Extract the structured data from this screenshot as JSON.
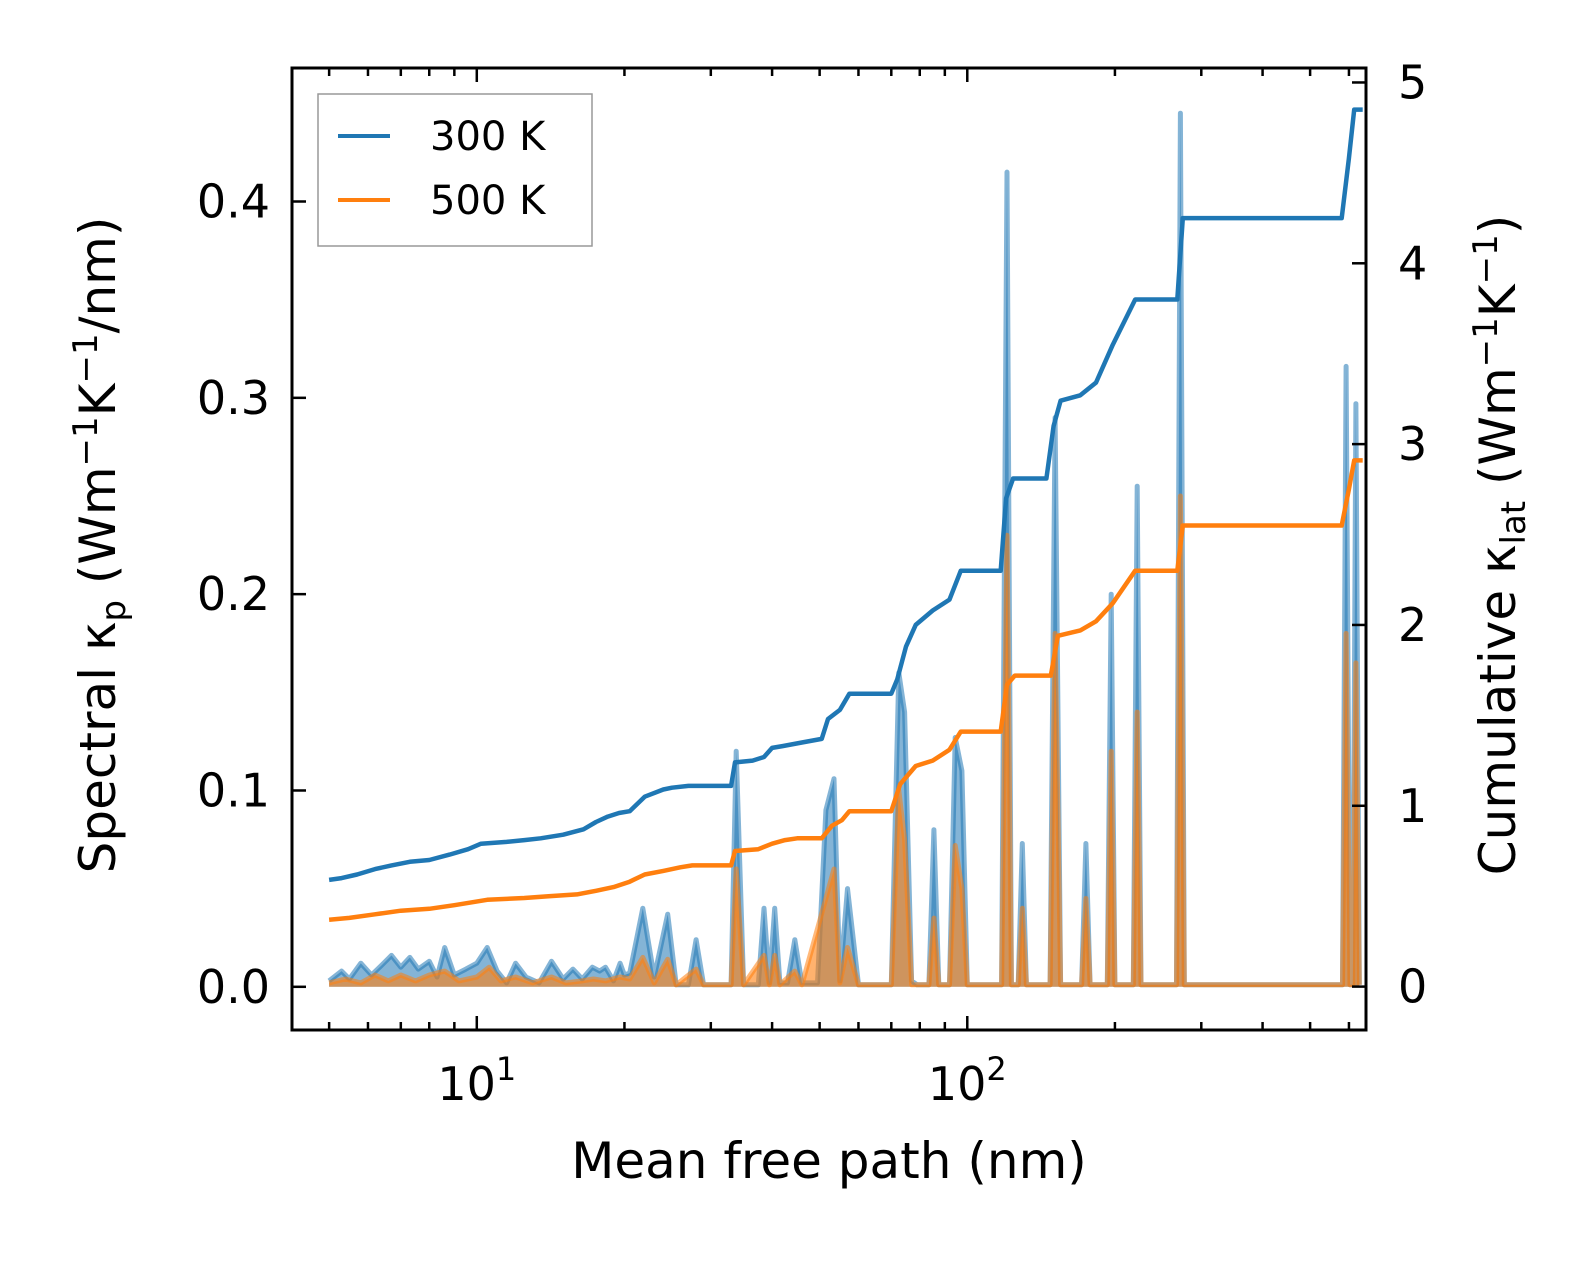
{
  "chart_data": {
    "type": "line",
    "x_scale": "log",
    "xlim": [
      4.2,
      650
    ],
    "ylim_left": [
      -0.022,
      0.468
    ],
    "ylim_right": [
      -0.24,
      5.08
    ],
    "xlabel": "Mean free path (nm)",
    "ylabel_left": {
      "prefix": "Spectral ",
      "kappa": "κ",
      "sub": "p",
      "units_open": " (Wm",
      "exp1": "−1",
      "mid": "K",
      "exp2": "−1",
      "units_close": "/nm)"
    },
    "ylabel_right": {
      "prefix": "Cumulative ",
      "kappa": "κ",
      "sub": "lat",
      "units_open": " (Wm",
      "exp1": "−1",
      "mid": "K",
      "exp2": "−1",
      "units_close": ")"
    },
    "x_ticks": [
      {
        "value": 10,
        "base": "10",
        "exp": "1"
      },
      {
        "value": 100,
        "base": "10",
        "exp": "2"
      }
    ],
    "y_ticks_left": [
      {
        "value": 0.0,
        "label": "0.0"
      },
      {
        "value": 0.1,
        "label": "0.1"
      },
      {
        "value": 0.2,
        "label": "0.2"
      },
      {
        "value": 0.3,
        "label": "0.3"
      },
      {
        "value": 0.4,
        "label": "0.4"
      }
    ],
    "y_ticks_right": [
      {
        "value": 0,
        "label": "0"
      },
      {
        "value": 1,
        "label": "1"
      },
      {
        "value": 2,
        "label": "2"
      },
      {
        "value": 3,
        "label": "3"
      },
      {
        "value": 4,
        "label": "4"
      },
      {
        "value": 5,
        "label": "5"
      }
    ],
    "legend": {
      "position": "top-left"
    },
    "series": [
      {
        "name": "300 K",
        "color": "#1f77b4",
        "cumulative": [
          [
            5.0,
            0.59
          ],
          [
            5.3,
            0.6
          ],
          [
            5.7,
            0.62
          ],
          [
            6.2,
            0.65
          ],
          [
            6.7,
            0.67
          ],
          [
            7.3,
            0.69
          ],
          [
            8.0,
            0.7
          ],
          [
            8.8,
            0.73
          ],
          [
            9.6,
            0.76
          ],
          [
            10.2,
            0.79
          ],
          [
            11.5,
            0.8
          ],
          [
            12.5,
            0.81
          ],
          [
            13.5,
            0.82
          ],
          [
            15.0,
            0.84
          ],
          [
            16.5,
            0.87
          ],
          [
            17.5,
            0.91
          ],
          [
            18.5,
            0.94
          ],
          [
            19.5,
            0.96
          ],
          [
            20.5,
            0.97
          ],
          [
            22.0,
            1.05
          ],
          [
            24.0,
            1.09
          ],
          [
            25.0,
            1.1
          ],
          [
            27.0,
            1.11
          ],
          [
            33.0,
            1.11
          ],
          [
            33.6,
            1.24
          ],
          [
            36.5,
            1.25
          ],
          [
            38.5,
            1.27
          ],
          [
            40.0,
            1.32
          ],
          [
            42.0,
            1.33
          ],
          [
            46.0,
            1.35
          ],
          [
            50.5,
            1.37
          ],
          [
            52.0,
            1.48
          ],
          [
            55.0,
            1.53
          ],
          [
            57.5,
            1.62
          ],
          [
            70.0,
            1.62
          ],
          [
            72.0,
            1.7
          ],
          [
            75.0,
            1.88
          ],
          [
            78.5,
            2.0
          ],
          [
            85.0,
            2.08
          ],
          [
            92.0,
            2.14
          ],
          [
            97.0,
            2.3
          ],
          [
            117.0,
            2.3
          ],
          [
            120.0,
            2.7
          ],
          [
            124.0,
            2.81
          ],
          [
            145.0,
            2.81
          ],
          [
            150.0,
            3.1
          ],
          [
            155.0,
            3.24
          ],
          [
            170.0,
            3.27
          ],
          [
            183.0,
            3.34
          ],
          [
            198.0,
            3.55
          ],
          [
            220.0,
            3.8
          ],
          [
            268.0,
            3.8
          ],
          [
            275.0,
            4.25
          ],
          [
            580.0,
            4.25
          ],
          [
            600.0,
            4.58
          ],
          [
            615.0,
            4.85
          ],
          [
            640.0,
            4.85
          ]
        ],
        "spectral": [
          [
            5.0,
            0.003
          ],
          [
            5.3,
            0.008
          ],
          [
            5.5,
            0.004
          ],
          [
            5.8,
            0.012
          ],
          [
            6.1,
            0.006
          ],
          [
            6.4,
            0.011
          ],
          [
            6.7,
            0.016
          ],
          [
            7.0,
            0.01
          ],
          [
            7.3,
            0.015
          ],
          [
            7.6,
            0.009
          ],
          [
            8.0,
            0.013
          ],
          [
            8.3,
            0.005
          ],
          [
            8.6,
            0.02
          ],
          [
            9.0,
            0.006
          ],
          [
            9.5,
            0.009
          ],
          [
            10.0,
            0.012
          ],
          [
            10.5,
            0.02
          ],
          [
            11.0,
            0.008
          ],
          [
            11.5,
            0.002
          ],
          [
            12.0,
            0.012
          ],
          [
            12.6,
            0.005
          ],
          [
            13.4,
            0.002
          ],
          [
            14.2,
            0.013
          ],
          [
            15.0,
            0.004
          ],
          [
            15.7,
            0.009
          ],
          [
            16.4,
            0.004
          ],
          [
            17.2,
            0.01
          ],
          [
            17.8,
            0.008
          ],
          [
            18.3,
            0.01
          ],
          [
            19.0,
            0.003
          ],
          [
            19.6,
            0.012
          ],
          [
            20.0,
            0.006
          ],
          [
            20.5,
            0.007
          ],
          [
            21.8,
            0.04
          ],
          [
            23.0,
            0.005
          ],
          [
            24.5,
            0.037
          ],
          [
            25.5,
            0.001
          ],
          [
            27.0,
            0.001
          ],
          [
            28.0,
            0.024
          ],
          [
            29.0,
            0.001
          ],
          [
            33.0,
            0.001
          ],
          [
            33.8,
            0.12
          ],
          [
            35.0,
            0.001
          ],
          [
            37.5,
            0.001
          ],
          [
            38.5,
            0.04
          ],
          [
            39.5,
            0.002
          ],
          [
            40.5,
            0.04
          ],
          [
            41.5,
            0.002
          ],
          [
            43.0,
            0.002
          ],
          [
            44.5,
            0.024
          ],
          [
            46.0,
            0.002
          ],
          [
            49.5,
            0.002
          ],
          [
            51.5,
            0.09
          ],
          [
            53.5,
            0.106
          ],
          [
            55.0,
            0.003
          ],
          [
            57.0,
            0.05
          ],
          [
            60.0,
            0.001
          ],
          [
            70.0,
            0.001
          ],
          [
            72.5,
            0.16
          ],
          [
            74.5,
            0.14
          ],
          [
            77.0,
            0.003
          ],
          [
            79.0,
            0.001
          ],
          [
            83.5,
            0.001
          ],
          [
            85.5,
            0.08
          ],
          [
            87.5,
            0.001
          ],
          [
            92.0,
            0.001
          ],
          [
            94.5,
            0.127
          ],
          [
            97.5,
            0.11
          ],
          [
            100.0,
            0.001
          ],
          [
            117.5,
            0.001
          ],
          [
            120.5,
            0.415
          ],
          [
            123.0,
            0.001
          ],
          [
            127.0,
            0.001
          ],
          [
            129.5,
            0.073
          ],
          [
            132.0,
            0.001
          ],
          [
            147.5,
            0.001
          ],
          [
            151.0,
            0.29
          ],
          [
            155.0,
            0.001
          ],
          [
            171.0,
            0.001
          ],
          [
            174.5,
            0.073
          ],
          [
            178.0,
            0.001
          ],
          [
            193.0,
            0.001
          ],
          [
            196.5,
            0.2
          ],
          [
            200.0,
            0.001
          ],
          [
            218.0,
            0.001
          ],
          [
            222.0,
            0.255
          ],
          [
            226.0,
            0.001
          ],
          [
            267.0,
            0.001
          ],
          [
            272.0,
            0.445
          ],
          [
            277.0,
            0.001
          ],
          [
            582.0,
            0.001
          ],
          [
            592.0,
            0.316
          ],
          [
            603.0,
            0.001
          ],
          [
            611.0,
            0.001
          ],
          [
            620.0,
            0.297
          ],
          [
            630.0,
            0.001
          ]
        ]
      },
      {
        "name": "500 K",
        "color": "#ff7f0e",
        "cumulative": [
          [
            5.0,
            0.37
          ],
          [
            5.5,
            0.38
          ],
          [
            6.2,
            0.4
          ],
          [
            7.0,
            0.42
          ],
          [
            8.0,
            0.43
          ],
          [
            9.0,
            0.45
          ],
          [
            10.5,
            0.48
          ],
          [
            12.5,
            0.49
          ],
          [
            14.0,
            0.5
          ],
          [
            16.0,
            0.51
          ],
          [
            17.5,
            0.53
          ],
          [
            19.0,
            0.55
          ],
          [
            20.5,
            0.58
          ],
          [
            22.0,
            0.62
          ],
          [
            24.0,
            0.64
          ],
          [
            26.0,
            0.66
          ],
          [
            27.5,
            0.67
          ],
          [
            33.0,
            0.67
          ],
          [
            33.6,
            0.75
          ],
          [
            37.5,
            0.76
          ],
          [
            40.0,
            0.79
          ],
          [
            42.5,
            0.81
          ],
          [
            45.0,
            0.82
          ],
          [
            50.5,
            0.82
          ],
          [
            53.0,
            0.89
          ],
          [
            55.5,
            0.92
          ],
          [
            57.5,
            0.97
          ],
          [
            70.0,
            0.97
          ],
          [
            73.0,
            1.12
          ],
          [
            78.5,
            1.22
          ],
          [
            85.0,
            1.25
          ],
          [
            92.0,
            1.31
          ],
          [
            97.0,
            1.41
          ],
          [
            117.0,
            1.41
          ],
          [
            120.5,
            1.67
          ],
          [
            125.0,
            1.72
          ],
          [
            148.0,
            1.72
          ],
          [
            153.0,
            1.94
          ],
          [
            170.0,
            1.97
          ],
          [
            183.0,
            2.02
          ],
          [
            198.0,
            2.12
          ],
          [
            220.0,
            2.3
          ],
          [
            268.0,
            2.3
          ],
          [
            275.0,
            2.55
          ],
          [
            580.0,
            2.55
          ],
          [
            600.0,
            2.75
          ],
          [
            615.0,
            2.91
          ],
          [
            640.0,
            2.91
          ]
        ],
        "spectral": [
          [
            5.0,
            0.002
          ],
          [
            5.4,
            0.004
          ],
          [
            5.8,
            0.002
          ],
          [
            6.2,
            0.006
          ],
          [
            6.6,
            0.003
          ],
          [
            7.0,
            0.006
          ],
          [
            7.5,
            0.003
          ],
          [
            8.0,
            0.006
          ],
          [
            8.6,
            0.008
          ],
          [
            9.2,
            0.003
          ],
          [
            10.0,
            0.005
          ],
          [
            10.6,
            0.01
          ],
          [
            11.2,
            0.003
          ],
          [
            12.0,
            0.005
          ],
          [
            13.0,
            0.002
          ],
          [
            14.2,
            0.005
          ],
          [
            15.2,
            0.002
          ],
          [
            16.4,
            0.003
          ],
          [
            17.3,
            0.004
          ],
          [
            18.3,
            0.003
          ],
          [
            19.6,
            0.005
          ],
          [
            20.5,
            0.004
          ],
          [
            21.8,
            0.015
          ],
          [
            23.0,
            0.002
          ],
          [
            24.5,
            0.014
          ],
          [
            25.5,
            0.001
          ],
          [
            28.0,
            0.009
          ],
          [
            29.0,
            0.001
          ],
          [
            33.0,
            0.001
          ],
          [
            33.8,
            0.06
          ],
          [
            35.0,
            0.001
          ],
          [
            38.5,
            0.016
          ],
          [
            39.5,
            0.001
          ],
          [
            40.5,
            0.016
          ],
          [
            41.5,
            0.001
          ],
          [
            44.5,
            0.008
          ],
          [
            46.0,
            0.001
          ],
          [
            51.5,
            0.045
          ],
          [
            53.5,
            0.06
          ],
          [
            55.0,
            0.002
          ],
          [
            57.0,
            0.02
          ],
          [
            60.0,
            0.001
          ],
          [
            70.0,
            0.001
          ],
          [
            72.5,
            0.1
          ],
          [
            74.5,
            0.075
          ],
          [
            77.0,
            0.001
          ],
          [
            83.5,
            0.001
          ],
          [
            85.5,
            0.035
          ],
          [
            87.5,
            0.001
          ],
          [
            92.0,
            0.001
          ],
          [
            94.5,
            0.072
          ],
          [
            97.5,
            0.05
          ],
          [
            100.0,
            0.001
          ],
          [
            117.5,
            0.001
          ],
          [
            120.5,
            0.23
          ],
          [
            123.0,
            0.001
          ],
          [
            127.0,
            0.001
          ],
          [
            129.5,
            0.04
          ],
          [
            132.0,
            0.001
          ],
          [
            147.5,
            0.001
          ],
          [
            151.0,
            0.18
          ],
          [
            155.0,
            0.001
          ],
          [
            171.0,
            0.001
          ],
          [
            174.5,
            0.045
          ],
          [
            178.0,
            0.001
          ],
          [
            193.0,
            0.001
          ],
          [
            196.5,
            0.12
          ],
          [
            200.0,
            0.001
          ],
          [
            218.0,
            0.001
          ],
          [
            222.0,
            0.14
          ],
          [
            226.0,
            0.001
          ],
          [
            267.0,
            0.001
          ],
          [
            272.0,
            0.25
          ],
          [
            277.0,
            0.001
          ],
          [
            582.0,
            0.001
          ],
          [
            592.0,
            0.18
          ],
          [
            603.0,
            0.001
          ],
          [
            611.0,
            0.001
          ],
          [
            620.0,
            0.165
          ],
          [
            630.0,
            0.001
          ]
        ]
      }
    ]
  }
}
